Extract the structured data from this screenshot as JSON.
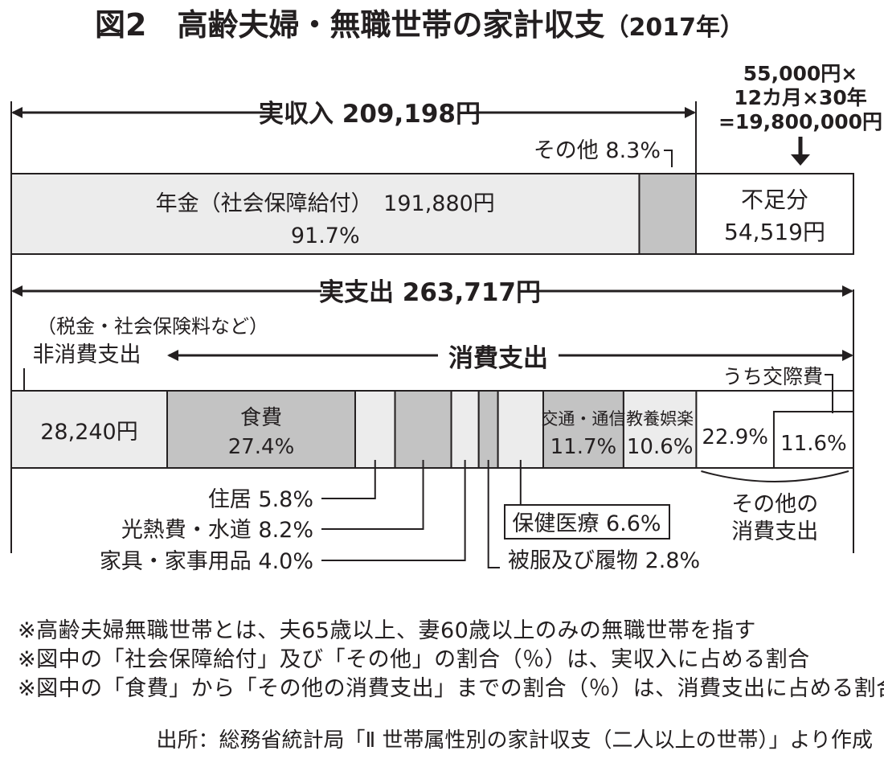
{
  "chart_data": {
    "type": "bar",
    "title": "図2　高齢夫婦・無職世帯の家計収支",
    "title_year": "（2017年）",
    "income": {
      "label": "実収入 209,198円",
      "total": 209198,
      "pension_label": "年金（社会保障給付）　191,880円",
      "pension_pct_label": "91.7%",
      "pension_value": 191880,
      "pension_pct": 91.7,
      "other_label": "その他 8.3%",
      "other_pct": 8.3
    },
    "deficit": {
      "label": "不足分",
      "value_label": "54,519円",
      "value": 54519,
      "calc_lines": [
        "55,000円×",
        "12カ月×30年",
        "=19,800,000円"
      ]
    },
    "expenditure": {
      "label": "実支出 263,717円",
      "total": 263717,
      "nonconsumption_note": "（税金・社会保険料など）",
      "nonconsumption_label": "非消費支出",
      "nonconsumption_value_label": "28,240円",
      "nonconsumption_value": 28240,
      "consumption_label": "消費支出",
      "categories": [
        "食費",
        "住居",
        "光熱費・水道",
        "家具・家事用品",
        "被服及び履物",
        "保健医療",
        "交通・通信",
        "教養娯楽",
        "その他の消費支出"
      ],
      "values": [
        27.4,
        5.8,
        8.2,
        4.0,
        2.8,
        6.6,
        11.7,
        10.6,
        22.9
      ],
      "inbar_labels": {
        "food_name": "食費",
        "food_pct": "27.4%",
        "transport_name": "交通・通信",
        "transport_pct": "11.7%",
        "culture_name": "教養娯楽",
        "culture_pct": "10.6%",
        "other_pct": "22.9%",
        "social_pct": "11.6%"
      },
      "callouts": {
        "housing": "住居 5.8%",
        "utilities": "光熱費・水道 8.2%",
        "furniture": "家具・家事用品 4.0%",
        "clothing": "被服及び履物 2.8%",
        "medical": "保健医療 6.6%",
        "social": "うち交際費",
        "other_line1": "その他の",
        "other_line2": "消費支出"
      },
      "social_pct": 11.6
    }
  },
  "notes": [
    "※高齢夫婦無職世帯とは、夫65歳以上、妻60歳以上のみの無職世帯を指す",
    "※図中の「社会保障給付」及び「その他」の割合（％）は、実収入に占める割合",
    "※図中の「食費」から「その他の消費支出」までの割合（％）は、消費支出に占める割合"
  ],
  "source": "出所：総務省統計局「Ⅱ 世帯属性別の家計収支（二人以上の世帯）」より作成",
  "colors": {
    "ink": "#231f20",
    "light_fill": "#ececec",
    "dark_fill": "#c3c3c3",
    "white": "#ffffff"
  }
}
